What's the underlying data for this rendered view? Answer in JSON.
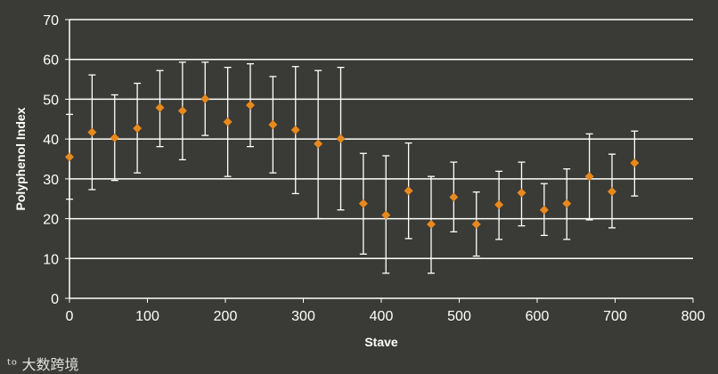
{
  "chart_data": {
    "type": "scatter",
    "title": "",
    "xlabel": "Stave",
    "ylabel": "Polyphenol Index",
    "xlim": [
      0,
      800
    ],
    "ylim": [
      0,
      70
    ],
    "x_ticks": [
      0,
      100,
      200,
      300,
      400,
      500,
      600,
      700,
      800
    ],
    "y_ticks": [
      0,
      10,
      20,
      30,
      40,
      50,
      60,
      70
    ],
    "grid": "horizontal",
    "legend": "none",
    "marker_shape": "diamond",
    "colors": {
      "background": "#3a3a36",
      "marker": "#e8891e",
      "error_bars": "#ffffff",
      "grid": "#ffffff",
      "text": "#ffffff"
    },
    "series": [
      {
        "x": [
          0,
          29,
          58,
          87,
          116,
          145,
          174,
          203,
          232,
          261,
          290,
          319,
          348,
          377,
          406,
          435,
          464,
          493,
          522,
          551,
          580,
          609,
          638,
          667,
          696,
          725
        ],
        "y": [
          35.5,
          41.7,
          40.3,
          42.7,
          47.9,
          47.1,
          50.1,
          44.3,
          48.5,
          43.6,
          42.3,
          38.8,
          40.1,
          23.8,
          20.9,
          27.0,
          18.6,
          25.4,
          18.6,
          23.5,
          26.5,
          22.2,
          23.8,
          30.6,
          26.8,
          34.0
        ],
        "err_low": [
          24.9,
          27.3,
          29.6,
          31.5,
          38.1,
          34.8,
          40.9,
          30.6,
          38.1,
          31.5,
          26.3,
          20.0,
          22.2,
          11.1,
          6.3,
          15.0,
          6.3,
          16.7,
          10.6,
          14.8,
          18.2,
          15.8,
          14.8,
          19.7,
          17.7,
          25.7
        ],
        "err_high": [
          46.2,
          56.1,
          51.1,
          54.0,
          57.2,
          59.3,
          59.3,
          58.0,
          58.9,
          55.7,
          58.2,
          57.2,
          58.0,
          36.4,
          35.8,
          39.0,
          30.6,
          34.2,
          26.7,
          31.9,
          34.2,
          28.8,
          32.5,
          41.3,
          36.2,
          42.0
        ]
      }
    ]
  },
  "watermark": {
    "text": "大数跨境"
  }
}
